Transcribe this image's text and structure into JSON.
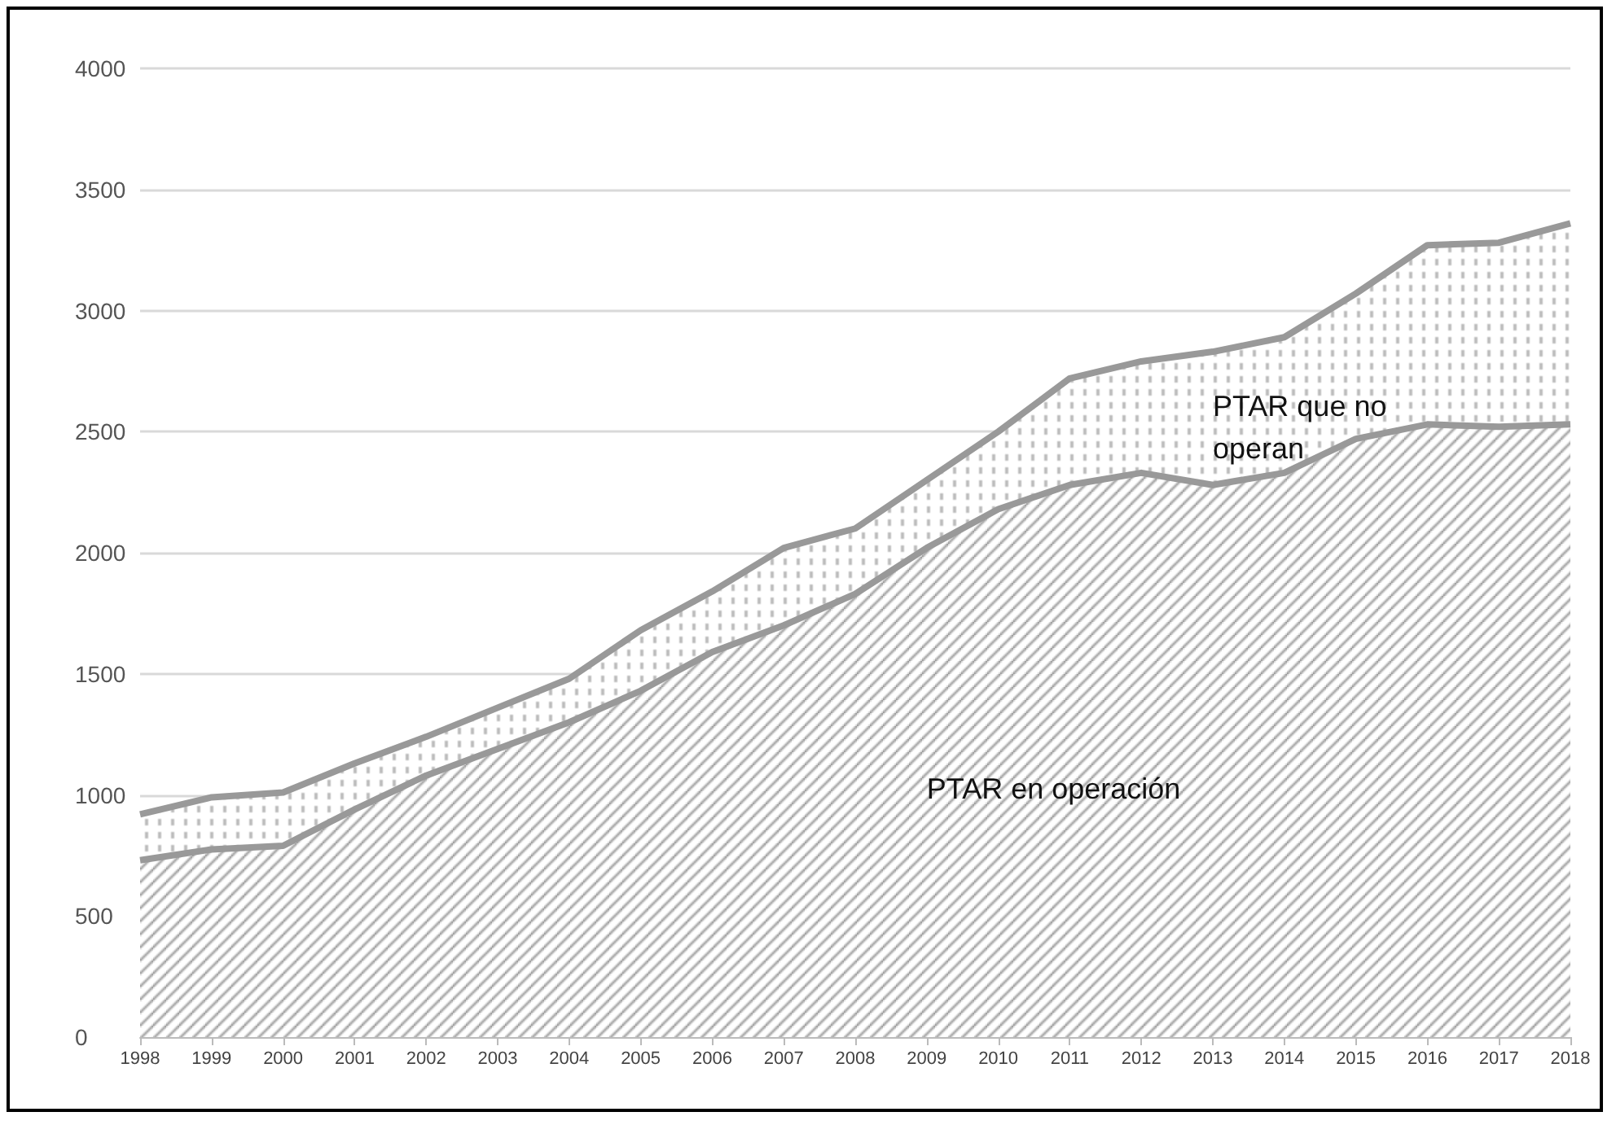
{
  "chart_data": {
    "type": "area",
    "stacked": true,
    "categories": [
      "1998",
      "1999",
      "2000",
      "2001",
      "2002",
      "2003",
      "2004",
      "2005",
      "2006",
      "2007",
      "2008",
      "2009",
      "2010",
      "2011",
      "2012",
      "2013",
      "2014",
      "2015",
      "2016",
      "2017",
      "2018"
    ],
    "series": [
      {
        "name": "PTAR en operación",
        "color": "#999999",
        "values": [
          730,
          775,
          790,
          940,
          1080,
          1190,
          1300,
          1430,
          1590,
          1700,
          1830,
          2020,
          2180,
          2280,
          2330,
          2280,
          2330,
          2470,
          2530,
          2520,
          2530
        ]
      },
      {
        "name": "PTAR que no\noperan",
        "color": "#999999",
        "values": [
          190,
          215,
          220,
          190,
          160,
          170,
          180,
          250,
          250,
          320,
          270,
          280,
          320,
          440,
          460,
          550,
          560,
          600,
          740,
          760,
          830
        ]
      }
    ],
    "ylim": [
      0,
      4000
    ],
    "yticks": [
      0,
      500,
      1000,
      1500,
      2000,
      2500,
      3000,
      3500,
      4000
    ],
    "grid": "y"
  }
}
